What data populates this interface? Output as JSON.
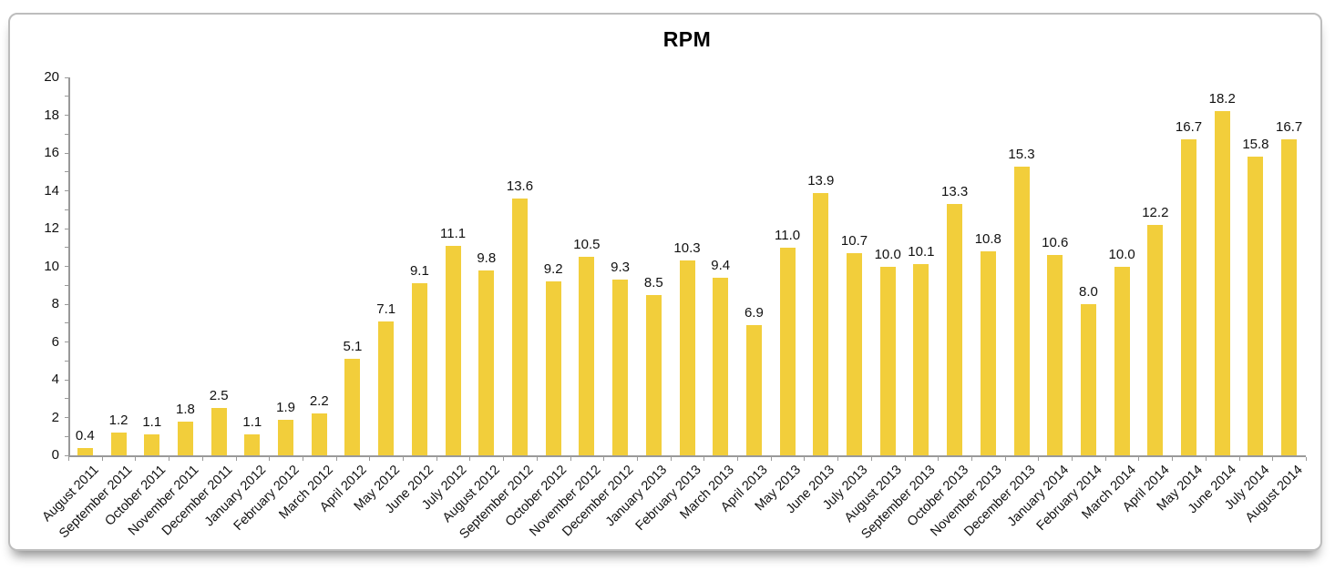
{
  "window": {
    "background": "#ffffff"
  },
  "chart_data": {
    "type": "bar",
    "title": "RPM",
    "categories": [
      "August 2011",
      "September 2011",
      "October 2011",
      "November 2011",
      "December 2011",
      "January 2012",
      "February 2012",
      "March 2012",
      "April 2012",
      "May 2012",
      "June 2012",
      "July 2012",
      "August 2012",
      "September 2012",
      "October 2012",
      "November 2012",
      "December 2012",
      "January 2013",
      "February 2013",
      "March 2013",
      "April 2013",
      "May 2013",
      "June 2013",
      "July 2013",
      "August 2013",
      "September 2013",
      "October 2013",
      "November 2013",
      "December 2013",
      "January 2014",
      "February 2014",
      "March 2014",
      "April 2014",
      "May 2014",
      "June 2014",
      "July 2014",
      "August 2014"
    ],
    "values": [
      0.4,
      1.2,
      1.1,
      1.8,
      2.5,
      1.1,
      1.9,
      2.2,
      5.1,
      7.1,
      9.1,
      11.1,
      9.8,
      13.6,
      9.2,
      10.5,
      9.3,
      8.5,
      10.3,
      9.4,
      6.9,
      11.0,
      13.9,
      10.7,
      10.0,
      10.1,
      13.3,
      10.8,
      15.3,
      10.6,
      8.0,
      10.0,
      12.2,
      16.7,
      18.2,
      15.8,
      16.7
    ],
    "value_label_decimals": 1,
    "ylim": [
      0,
      20
    ],
    "ytick_step": 2,
    "yminor_step": 1,
    "xlabel": "",
    "ylabel": "",
    "grid": "off",
    "legend": "none",
    "bar_color": "#F2CE3B",
    "axis_color": "#999999",
    "text_color": "#111111"
  }
}
